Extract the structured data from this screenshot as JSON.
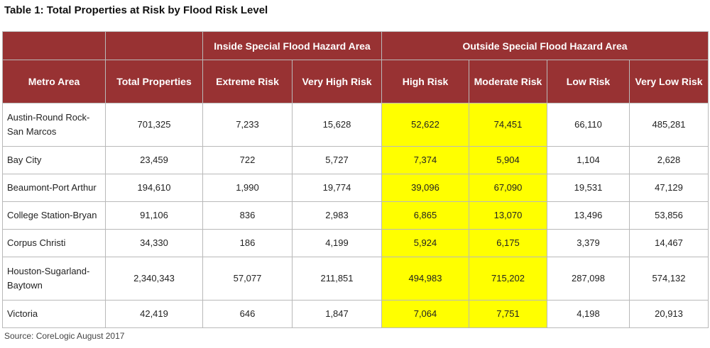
{
  "title": "Table 1: Total Properties at Risk by Flood Risk Level",
  "groups": {
    "inside": "Inside Special Flood Hazard Area",
    "outside": "Outside Special Flood Hazard Area"
  },
  "columns": {
    "metro": "Metro Area",
    "total": "Total Properties",
    "extreme": "Extreme Risk",
    "very_high": "Very High Risk",
    "high": "High Risk",
    "moderate": "Moderate Risk",
    "low": "Low Risk",
    "very_low": "Very Low Risk"
  },
  "rows": [
    {
      "metro": "Austin-Round Rock-San Marcos",
      "total": "701,325",
      "extreme": "7,233",
      "very_high": "15,628",
      "high": "52,622",
      "moderate": "74,451",
      "low": "66,110",
      "very_low": "485,281"
    },
    {
      "metro": "Bay City",
      "total": "23,459",
      "extreme": "722",
      "very_high": "5,727",
      "high": "7,374",
      "moderate": "5,904",
      "low": "1,104",
      "very_low": "2,628"
    },
    {
      "metro": "Beaumont-Port Arthur",
      "total": "194,610",
      "extreme": "1,990",
      "very_high": "19,774",
      "high": "39,096",
      "moderate": "67,090",
      "low": "19,531",
      "very_low": "47,129"
    },
    {
      "metro": "College Station-Bryan",
      "total": "91,106",
      "extreme": "836",
      "very_high": "2,983",
      "high": "6,865",
      "moderate": "13,070",
      "low": "13,496",
      "very_low": "53,856"
    },
    {
      "metro": "Corpus Christi",
      "total": "34,330",
      "extreme": "186",
      "very_high": "4,199",
      "high": "5,924",
      "moderate": "6,175",
      "low": "3,379",
      "very_low": "14,467"
    },
    {
      "metro": "Houston-Sugarland-Baytown",
      "total": "2,340,343",
      "extreme": "57,077",
      "very_high": "211,851",
      "high": "494,983",
      "moderate": "715,202",
      "low": "287,098",
      "very_low": "574,132"
    },
    {
      "metro": "Victoria",
      "total": "42,419",
      "extreme": "646",
      "very_high": "1,847",
      "high": "7,064",
      "moderate": "7,751",
      "low": "4,198",
      "very_low": "20,913"
    }
  ],
  "colors": {
    "header_bg": "#983233",
    "highlight": "#ffff00",
    "border": "#b9b9b9"
  },
  "source": "Source: CoreLogic August 2017"
}
